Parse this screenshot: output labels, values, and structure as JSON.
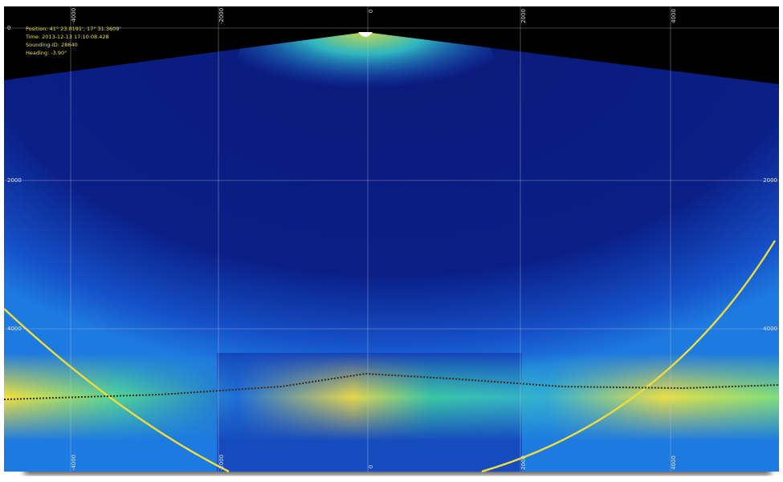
{
  "info": {
    "position": "Position: 41° 23.0191', 17° 31.3609'",
    "time": "Time: 2013-12-13 17:10:08.428",
    "sounding": "Sounding-ID: 28640",
    "heading": "Heading: -3.90°"
  },
  "axes": {
    "top": [
      "-4000",
      "-2000",
      "0",
      "2000",
      "4000"
    ],
    "left": [
      "0",
      "2000",
      "4000"
    ],
    "right": [
      "2000",
      "4000"
    ],
    "bottom": [
      "-4000",
      "-2000",
      "0",
      "2000",
      "4000"
    ]
  }
}
